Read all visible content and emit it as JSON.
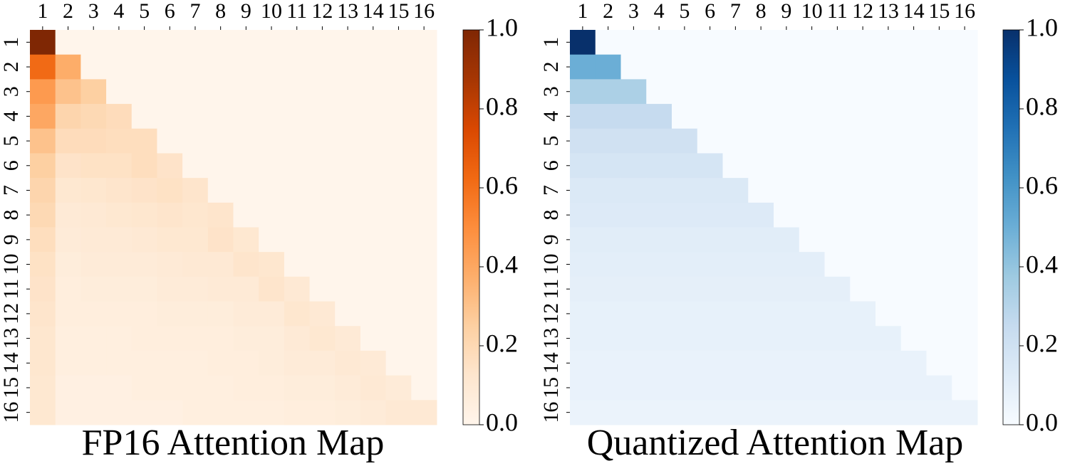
{
  "chart_data": [
    {
      "type": "heatmap",
      "title": "FP16 Attention Map",
      "x_labels": [
        "1",
        "2",
        "3",
        "4",
        "5",
        "6",
        "7",
        "8",
        "9",
        "10",
        "11",
        "12",
        "13",
        "14",
        "15",
        "16"
      ],
      "y_labels": [
        "1",
        "2",
        "3",
        "4",
        "5",
        "6",
        "7",
        "8",
        "9",
        "10",
        "11",
        "12",
        "13",
        "14",
        "15",
        "16"
      ],
      "zlim": [
        0,
        1
      ],
      "colorbar_ticks": [
        {
          "value": 0,
          "label": "0.0"
        },
        0.2,
        0.4,
        0.6,
        0.8,
        {
          "value": 1,
          "label": "1.0"
        }
      ],
      "colormap": [
        "#fff5eb",
        "#fee6ce",
        "#fdd0a2",
        "#fdae6b",
        "#fd8d3c",
        "#f16913",
        "#d94801",
        "#a63603",
        "#7f2704"
      ],
      "z": [
        [
          1.0,
          0,
          0,
          0,
          0,
          0,
          0,
          0,
          0,
          0,
          0,
          0,
          0,
          0,
          0,
          0
        ],
        [
          0.62,
          0.38,
          0,
          0,
          0,
          0,
          0,
          0,
          0,
          0,
          0,
          0,
          0,
          0,
          0,
          0
        ],
        [
          0.45,
          0.3,
          0.25,
          0,
          0,
          0,
          0,
          0,
          0,
          0,
          0,
          0,
          0,
          0,
          0,
          0
        ],
        [
          0.4,
          0.22,
          0.2,
          0.18,
          0,
          0,
          0,
          0,
          0,
          0,
          0,
          0,
          0,
          0,
          0,
          0
        ],
        [
          0.3,
          0.18,
          0.18,
          0.17,
          0.17,
          0,
          0,
          0,
          0,
          0,
          0,
          0,
          0,
          0,
          0,
          0
        ],
        [
          0.25,
          0.14,
          0.15,
          0.15,
          0.17,
          0.14,
          0,
          0,
          0,
          0,
          0,
          0,
          0,
          0,
          0,
          0
        ],
        [
          0.22,
          0.11,
          0.12,
          0.13,
          0.14,
          0.15,
          0.13,
          0,
          0,
          0,
          0,
          0,
          0,
          0,
          0,
          0
        ],
        [
          0.2,
          0.09,
          0.1,
          0.11,
          0.12,
          0.13,
          0.12,
          0.13,
          0,
          0,
          0,
          0,
          0,
          0,
          0,
          0
        ],
        [
          0.17,
          0.08,
          0.09,
          0.09,
          0.1,
          0.11,
          0.11,
          0.14,
          0.11,
          0,
          0,
          0,
          0,
          0,
          0,
          0
        ],
        [
          0.15,
          0.07,
          0.08,
          0.08,
          0.08,
          0.09,
          0.1,
          0.1,
          0.13,
          0.12,
          0,
          0,
          0,
          0,
          0,
          0
        ],
        [
          0.14,
          0.06,
          0.07,
          0.07,
          0.07,
          0.08,
          0.08,
          0.09,
          0.09,
          0.13,
          0.1,
          0,
          0,
          0,
          0,
          0
        ],
        [
          0.13,
          0.06,
          0.06,
          0.06,
          0.06,
          0.07,
          0.07,
          0.07,
          0.08,
          0.08,
          0.12,
          0.1,
          0,
          0,
          0,
          0
        ],
        [
          0.12,
          0.05,
          0.05,
          0.05,
          0.06,
          0.06,
          0.06,
          0.06,
          0.07,
          0.07,
          0.09,
          0.11,
          0.09,
          0,
          0,
          0
        ],
        [
          0.12,
          0.05,
          0.05,
          0.05,
          0.05,
          0.05,
          0.05,
          0.06,
          0.06,
          0.07,
          0.08,
          0.08,
          0.1,
          0.09,
          0,
          0
        ],
        [
          0.11,
          0.04,
          0.04,
          0.04,
          0.05,
          0.05,
          0.05,
          0.05,
          0.06,
          0.06,
          0.07,
          0.07,
          0.08,
          0.1,
          0.08,
          0
        ],
        [
          0.11,
          0.04,
          0.04,
          0.04,
          0.04,
          0.04,
          0.05,
          0.05,
          0.05,
          0.05,
          0.06,
          0.06,
          0.07,
          0.08,
          0.1,
          0.1
        ]
      ]
    },
    {
      "type": "heatmap",
      "title": "Quantized Attention Map",
      "x_labels": [
        "1",
        "2",
        "3",
        "4",
        "5",
        "6",
        "7",
        "8",
        "9",
        "10",
        "11",
        "12",
        "13",
        "14",
        "15",
        "16"
      ],
      "y_labels": [
        "1",
        "2",
        "3",
        "4",
        "5",
        "6",
        "7",
        "8",
        "9",
        "10",
        "11",
        "12",
        "13",
        "14",
        "15",
        "16"
      ],
      "zlim": [
        0,
        1
      ],
      "colorbar_ticks": [
        {
          "value": 0,
          "label": "0.0"
        },
        0.2,
        0.4,
        0.6,
        0.8,
        {
          "value": 1,
          "label": "1.0"
        }
      ],
      "colormap": [
        "#f7fbff",
        "#deebf7",
        "#c6dbef",
        "#9ecae1",
        "#6baed6",
        "#4292c6",
        "#2171b5",
        "#08519c",
        "#08306b"
      ],
      "z": [
        [
          1.0,
          0,
          0,
          0,
          0,
          0,
          0,
          0,
          0,
          0,
          0,
          0,
          0,
          0,
          0,
          0
        ],
        [
          0.5,
          0.5,
          0,
          0,
          0,
          0,
          0,
          0,
          0,
          0,
          0,
          0,
          0,
          0,
          0,
          0
        ],
        [
          0.33,
          0.33,
          0.33,
          0,
          0,
          0,
          0,
          0,
          0,
          0,
          0,
          0,
          0,
          0,
          0,
          0
        ],
        [
          0.25,
          0.25,
          0.25,
          0.25,
          0,
          0,
          0,
          0,
          0,
          0,
          0,
          0,
          0,
          0,
          0,
          0
        ],
        [
          0.2,
          0.2,
          0.2,
          0.2,
          0.2,
          0,
          0,
          0,
          0,
          0,
          0,
          0,
          0,
          0,
          0,
          0
        ],
        [
          0.17,
          0.17,
          0.17,
          0.17,
          0.17,
          0.17,
          0,
          0,
          0,
          0,
          0,
          0,
          0,
          0,
          0,
          0
        ],
        [
          0.14,
          0.14,
          0.14,
          0.14,
          0.14,
          0.14,
          0.14,
          0,
          0,
          0,
          0,
          0,
          0,
          0,
          0,
          0
        ],
        [
          0.13,
          0.13,
          0.13,
          0.13,
          0.13,
          0.13,
          0.13,
          0.13,
          0,
          0,
          0,
          0,
          0,
          0,
          0,
          0
        ],
        [
          0.11,
          0.11,
          0.11,
          0.11,
          0.11,
          0.11,
          0.11,
          0.11,
          0.11,
          0,
          0,
          0,
          0,
          0,
          0,
          0
        ],
        [
          0.1,
          0.1,
          0.1,
          0.1,
          0.1,
          0.1,
          0.1,
          0.1,
          0.1,
          0.1,
          0,
          0,
          0,
          0,
          0,
          0
        ],
        [
          0.09,
          0.09,
          0.09,
          0.09,
          0.09,
          0.09,
          0.09,
          0.09,
          0.09,
          0.09,
          0.09,
          0,
          0,
          0,
          0,
          0
        ],
        [
          0.08,
          0.08,
          0.08,
          0.08,
          0.08,
          0.08,
          0.08,
          0.08,
          0.08,
          0.08,
          0.08,
          0.08,
          0,
          0,
          0,
          0
        ],
        [
          0.08,
          0.08,
          0.08,
          0.08,
          0.08,
          0.08,
          0.08,
          0.08,
          0.08,
          0.08,
          0.08,
          0.08,
          0.08,
          0,
          0,
          0
        ],
        [
          0.07,
          0.07,
          0.07,
          0.07,
          0.07,
          0.07,
          0.07,
          0.07,
          0.07,
          0.07,
          0.07,
          0.07,
          0.07,
          0.07,
          0,
          0
        ],
        [
          0.07,
          0.07,
          0.07,
          0.07,
          0.07,
          0.07,
          0.07,
          0.07,
          0.07,
          0.07,
          0.07,
          0.07,
          0.07,
          0.07,
          0.07,
          0
        ],
        [
          0.06,
          0.06,
          0.06,
          0.06,
          0.06,
          0.06,
          0.06,
          0.06,
          0.06,
          0.06,
          0.06,
          0.06,
          0.06,
          0.06,
          0.06,
          0.06
        ]
      ]
    }
  ]
}
